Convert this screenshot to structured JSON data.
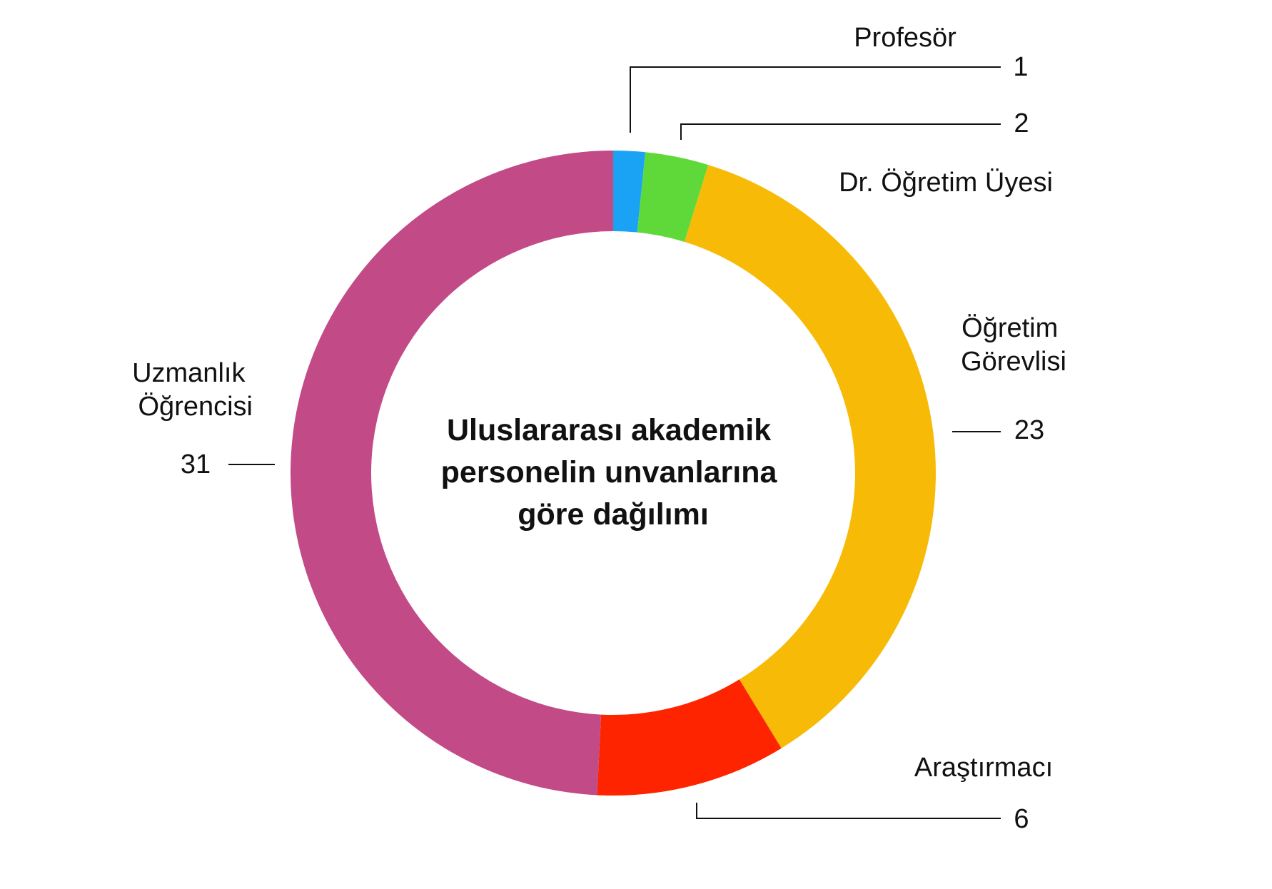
{
  "chart_data": {
    "type": "donut",
    "title": "Uluslararası akademik personelin unvanlarına göre dağılımı",
    "categories": [
      "Profesör",
      "Dr. Öğretim Üyesi",
      "Öğretim Görevlisi",
      "Araştırmacı",
      "Uzmanlık Öğrencisi"
    ],
    "values": [
      1,
      2,
      23,
      6,
      31
    ],
    "colors": [
      "#1aa3f5",
      "#5fd93a",
      "#f7bb07",
      "#ff2400",
      "#c24a87"
    ]
  }
}
